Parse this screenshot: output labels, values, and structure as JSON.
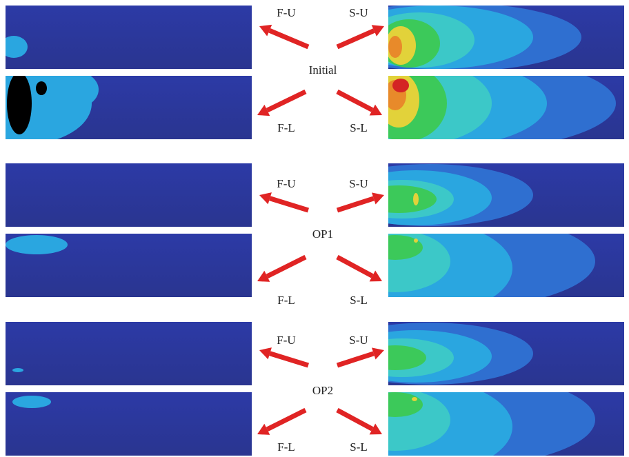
{
  "figure": {
    "groups": [
      {
        "label": "Initial",
        "upper_left": "F-U",
        "upper_right": "S-U",
        "lower_left": "F-L",
        "lower_right": "S-L"
      },
      {
        "label": "OP1",
        "upper_left": "F-U",
        "upper_right": "S-U",
        "lower_left": "F-L",
        "lower_right": "S-L"
      },
      {
        "label": "OP2",
        "upper_left": "F-U",
        "upper_right": "S-U",
        "lower_left": "F-L",
        "lower_right": "S-L"
      }
    ]
  }
}
